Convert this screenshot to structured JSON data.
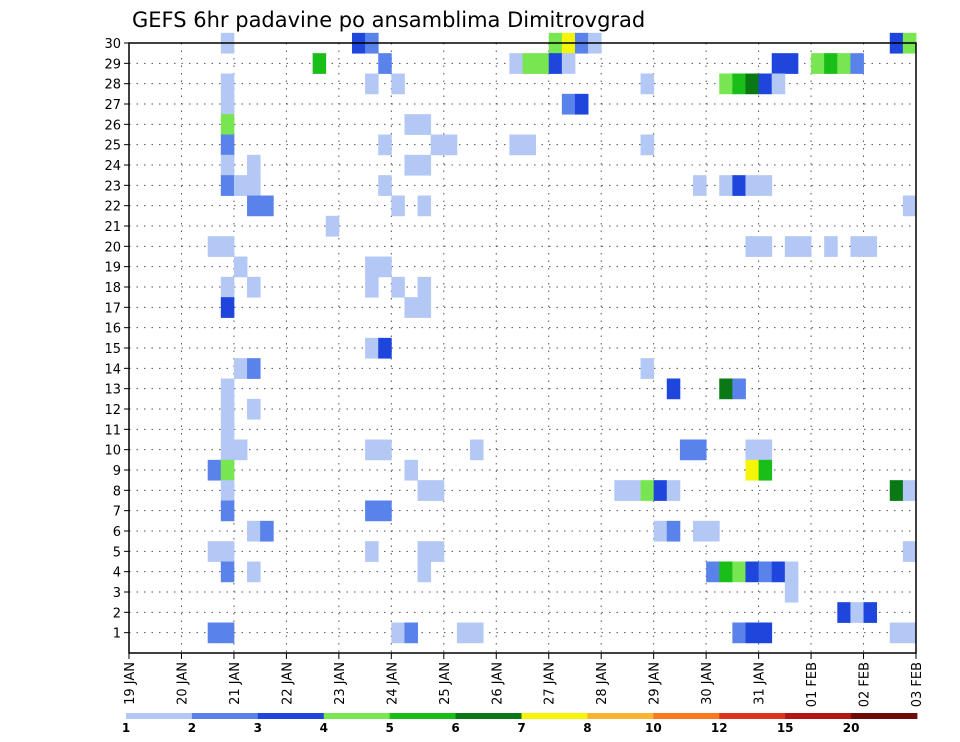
{
  "chart_data": {
    "type": "heatmap",
    "title": "GEFS 6hr padavine po ansamblima Dimitrovgrad",
    "xlabel": "",
    "ylabel": "",
    "x_tick_labels": [
      "19 JAN",
      "20 JAN",
      "21 JAN",
      "22 JAN",
      "23 JAN",
      "24 JAN",
      "25 JAN",
      "26 JAN",
      "27 JAN",
      "28 JAN",
      "29 JAN",
      "30 JAN",
      "31 JAN",
      "01 FEB",
      "02 FEB",
      "03 FEB"
    ],
    "y_tick_labels": [
      "1",
      "2",
      "3",
      "4",
      "5",
      "6",
      "7",
      "8",
      "9",
      "10",
      "11",
      "12",
      "13",
      "14",
      "15",
      "16",
      "17",
      "18",
      "19",
      "20",
      "21",
      "22",
      "23",
      "24",
      "25",
      "26",
      "27",
      "28",
      "29",
      "30"
    ],
    "x_unit": "6-hour steps from 19 JAN 00",
    "y_range": [
      0,
      30
    ],
    "x_range": [
      0,
      60
    ],
    "grid": true,
    "legend": {
      "placement": "bottom",
      "labels": [
        "1",
        "2",
        "3",
        "4",
        "5",
        "6",
        "7",
        "8",
        "10",
        "12",
        "15",
        "20"
      ],
      "colors": [
        "#b4c8f5",
        "#5a82eb",
        "#1e46dc",
        "#78e650",
        "#19be19",
        "#0a7814",
        "#f5f50a",
        "#fab432",
        "#fa781e",
        "#e1321e",
        "#b41414",
        "#6e0a0a"
      ]
    },
    "cells": [
      [
        8,
        30,
        1
      ],
      [
        18,
        30,
        3
      ],
      [
        19,
        30,
        2
      ],
      [
        33,
        30,
        4
      ],
      [
        34,
        30,
        7
      ],
      [
        35,
        30,
        2
      ],
      [
        36,
        30,
        1
      ],
      [
        59,
        30,
        3
      ],
      [
        60,
        30,
        4
      ],
      [
        15,
        29,
        5
      ],
      [
        20,
        29,
        2
      ],
      [
        30,
        29,
        1
      ],
      [
        31,
        29,
        4
      ],
      [
        32,
        29,
        4
      ],
      [
        33,
        29,
        3
      ],
      [
        34,
        29,
        1
      ],
      [
        50,
        29,
        3
      ],
      [
        51,
        29,
        3
      ],
      [
        53,
        29,
        4
      ],
      [
        54,
        29,
        5
      ],
      [
        55,
        29,
        4
      ],
      [
        56,
        29,
        2
      ],
      [
        8,
        28,
        1
      ],
      [
        19,
        28,
        1
      ],
      [
        21,
        28,
        1
      ],
      [
        40,
        28,
        1
      ],
      [
        46,
        28,
        4
      ],
      [
        47,
        28,
        5
      ],
      [
        48,
        28,
        6
      ],
      [
        49,
        28,
        3
      ],
      [
        50,
        28,
        1
      ],
      [
        8,
        27,
        1
      ],
      [
        34,
        27,
        2
      ],
      [
        35,
        27,
        3
      ],
      [
        8,
        26,
        4
      ],
      [
        22,
        26,
        1
      ],
      [
        23,
        26,
        1
      ],
      [
        8,
        25,
        2
      ],
      [
        20,
        25,
        1
      ],
      [
        24,
        25,
        1
      ],
      [
        25,
        25,
        1
      ],
      [
        30,
        25,
        1
      ],
      [
        31,
        25,
        1
      ],
      [
        40,
        25,
        1
      ],
      [
        8,
        24,
        1
      ],
      [
        10,
        24,
        1
      ],
      [
        22,
        24,
        1
      ],
      [
        23,
        24,
        1
      ],
      [
        8,
        23,
        2
      ],
      [
        9,
        23,
        1
      ],
      [
        10,
        23,
        1
      ],
      [
        20,
        23,
        1
      ],
      [
        44,
        23,
        1
      ],
      [
        46,
        23,
        1
      ],
      [
        47,
        23,
        3
      ],
      [
        48,
        23,
        1
      ],
      [
        49,
        23,
        1
      ],
      [
        10,
        22,
        2
      ],
      [
        11,
        22,
        2
      ],
      [
        21,
        22,
        1
      ],
      [
        23,
        22,
        1
      ],
      [
        60,
        22,
        1
      ],
      [
        16,
        21,
        1
      ],
      [
        7,
        20,
        1
      ],
      [
        8,
        20,
        1
      ],
      [
        48,
        20,
        1
      ],
      [
        49,
        20,
        1
      ],
      [
        51,
        20,
        1
      ],
      [
        52,
        20,
        1
      ],
      [
        54,
        20,
        1
      ],
      [
        56,
        20,
        1
      ],
      [
        57,
        20,
        1
      ],
      [
        9,
        19,
        1
      ],
      [
        19,
        19,
        1
      ],
      [
        20,
        19,
        1
      ],
      [
        8,
        18,
        1
      ],
      [
        10,
        18,
        1
      ],
      [
        19,
        18,
        1
      ],
      [
        21,
        18,
        1
      ],
      [
        23,
        18,
        1
      ],
      [
        8,
        17,
        3
      ],
      [
        22,
        17,
        1
      ],
      [
        23,
        17,
        1
      ],
      [
        19,
        15,
        1
      ],
      [
        20,
        15,
        3
      ],
      [
        9,
        14,
        1
      ],
      [
        10,
        14,
        2
      ],
      [
        40,
        14,
        1
      ],
      [
        8,
        13,
        1
      ],
      [
        42,
        13,
        3
      ],
      [
        46,
        13,
        6
      ],
      [
        47,
        13,
        2
      ],
      [
        8,
        12,
        1
      ],
      [
        10,
        12,
        1
      ],
      [
        8,
        11,
        1
      ],
      [
        8,
        10,
        1
      ],
      [
        9,
        10,
        1
      ],
      [
        19,
        10,
        1
      ],
      [
        20,
        10,
        1
      ],
      [
        27,
        10,
        1
      ],
      [
        43,
        10,
        2
      ],
      [
        44,
        10,
        2
      ],
      [
        48,
        10,
        1
      ],
      [
        49,
        10,
        1
      ],
      [
        7,
        9,
        2
      ],
      [
        8,
        9,
        4
      ],
      [
        22,
        9,
        1
      ],
      [
        48,
        9,
        7
      ],
      [
        49,
        9,
        5
      ],
      [
        8,
        8,
        1
      ],
      [
        23,
        8,
        1
      ],
      [
        24,
        8,
        1
      ],
      [
        38,
        8,
        1
      ],
      [
        39,
        8,
        1
      ],
      [
        40,
        8,
        4
      ],
      [
        41,
        8,
        3
      ],
      [
        42,
        8,
        1
      ],
      [
        59,
        8,
        6
      ],
      [
        60,
        8,
        1
      ],
      [
        8,
        7,
        2
      ],
      [
        19,
        7,
        2
      ],
      [
        20,
        7,
        2
      ],
      [
        10,
        6,
        1
      ],
      [
        11,
        6,
        2
      ],
      [
        41,
        6,
        1
      ],
      [
        42,
        6,
        2
      ],
      [
        44,
        6,
        1
      ],
      [
        45,
        6,
        1
      ],
      [
        7,
        5,
        1
      ],
      [
        8,
        5,
        1
      ],
      [
        19,
        5,
        1
      ],
      [
        23,
        5,
        1
      ],
      [
        24,
        5,
        1
      ],
      [
        60,
        5,
        1
      ],
      [
        8,
        4,
        2
      ],
      [
        10,
        4,
        1
      ],
      [
        23,
        4,
        1
      ],
      [
        45,
        4,
        2
      ],
      [
        46,
        4,
        5
      ],
      [
        47,
        4,
        4
      ],
      [
        48,
        4,
        3
      ],
      [
        49,
        4,
        2
      ],
      [
        50,
        4,
        3
      ],
      [
        51,
        4,
        1
      ],
      [
        51,
        3,
        1
      ],
      [
        55,
        2,
        3
      ],
      [
        56,
        2,
        1
      ],
      [
        57,
        2,
        3
      ],
      [
        7,
        1,
        2
      ],
      [
        8,
        1,
        2
      ],
      [
        21,
        1,
        1
      ],
      [
        22,
        1,
        2
      ],
      [
        26,
        1,
        1
      ],
      [
        27,
        1,
        1
      ],
      [
        47,
        1,
        2
      ],
      [
        48,
        1,
        3
      ],
      [
        49,
        1,
        3
      ],
      [
        59,
        1,
        1
      ],
      [
        60,
        1,
        1
      ]
    ]
  }
}
